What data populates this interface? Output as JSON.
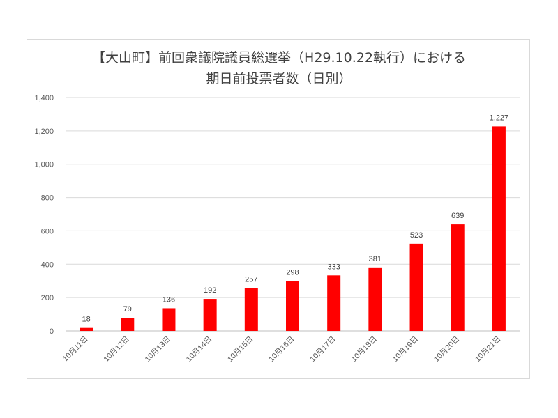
{
  "chart_data": {
    "type": "bar",
    "title_lines": [
      "【大山町】前回衆議院議員総選挙（H29.10.22執行）における",
      "期日前投票者数（日別）"
    ],
    "categories": [
      "10月11日",
      "10月12日",
      "10月13日",
      "10月14日",
      "10月15日",
      "10月16日",
      "10月17日",
      "10月18日",
      "10月19日",
      "10月20日",
      "10月21日"
    ],
    "values": [
      18,
      79,
      136,
      192,
      257,
      298,
      333,
      381,
      523,
      639,
      1227
    ],
    "value_labels": [
      "18",
      "79",
      "136",
      "192",
      "257",
      "298",
      "333",
      "381",
      "523",
      "639",
      "1,227"
    ],
    "ylim": [
      0,
      1400
    ],
    "yticks": [
      0,
      200,
      400,
      600,
      800,
      1000,
      1200,
      1400
    ],
    "ytick_labels": [
      "0",
      "200",
      "400",
      "600",
      "800",
      "1,000",
      "1,200",
      "1,400"
    ],
    "bar_color": "#ff0000",
    "grid": true,
    "legend": "none"
  }
}
